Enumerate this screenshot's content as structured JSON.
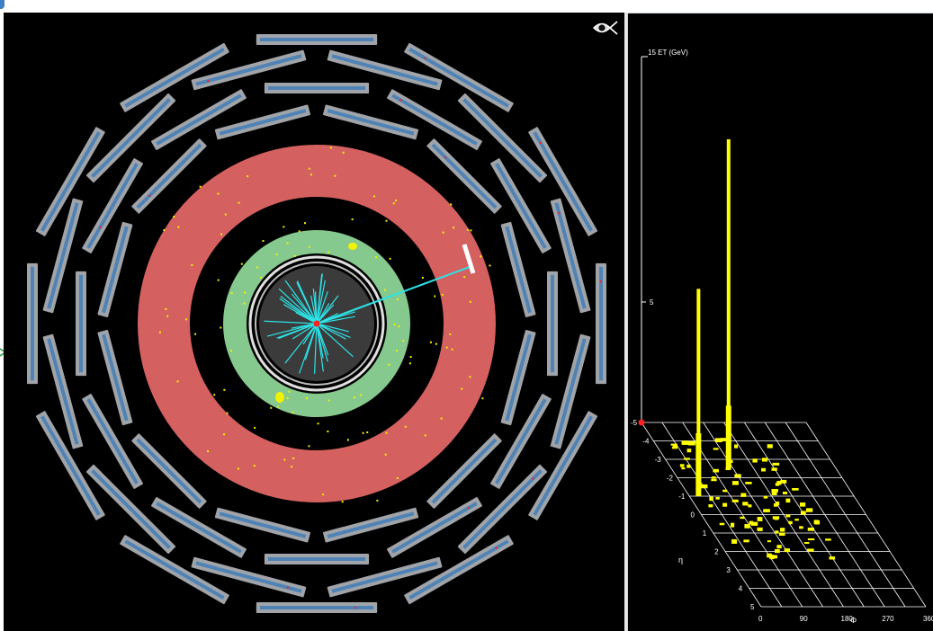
{
  "colors": {
    "background": "#000000",
    "muon_chamber_gray": "#a0a4a8",
    "muon_chamber_blue": "#4f83b6",
    "hcal_red": "#d46060",
    "ecal_green": "#86c98f",
    "tracker_gray": "#3b3b3b",
    "track_cyan": "#2de2e6",
    "hit_yellow": "#f2f200",
    "vertex_red": "#ff2020",
    "tower_yellow": "#ffff00",
    "grid_white": "#ffffff"
  },
  "icons": {
    "eye": "eye-icon",
    "side_arrow": "chevron-right-icon",
    "corner": "app-corner-icon"
  },
  "lego_plot": {
    "z_axis_label": "15 ET (GeV)",
    "z_mid_tick_label": "5",
    "phi_label": "Φ",
    "eta_label": "η",
    "phi_ticks": [
      "0",
      "90",
      "180",
      "270",
      "360"
    ],
    "eta_ticks": [
      "-5",
      "-4",
      "-3",
      "-2",
      "-1",
      "0",
      "1",
      "2",
      "3",
      "4",
      "5"
    ]
  },
  "chart_data": {
    "type": "bar",
    "title": "",
    "zlabel": "ET (GeV)",
    "xlabel": "Φ",
    "ylabel": "η",
    "xlim": [
      0,
      360
    ],
    "ylim": [
      -5,
      5
    ],
    "zmax_label": 15,
    "towers": [
      {
        "phi": 20,
        "eta": -1.0,
        "et": 8.5
      },
      {
        "phi": 125,
        "eta": -2.5,
        "et": 13.5
      }
    ]
  }
}
